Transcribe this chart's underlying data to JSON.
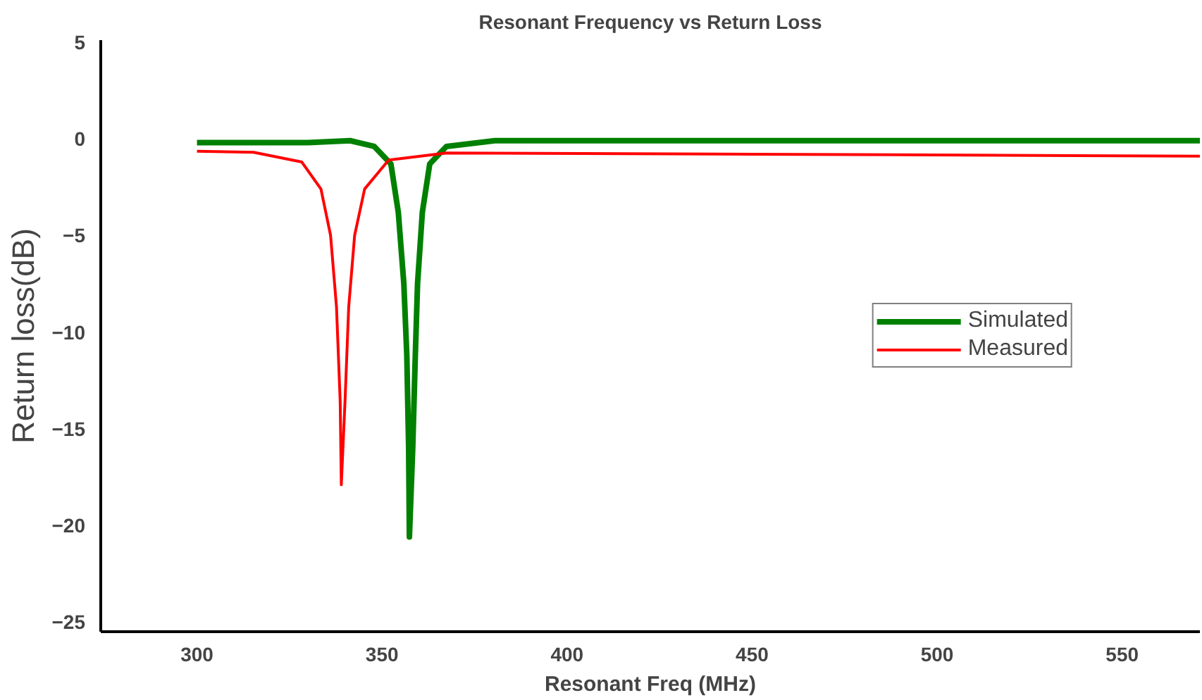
{
  "chart_data": {
    "type": "line",
    "title": "Resonant Frequency vs Return Loss",
    "xlabel": "Resonant Freq (MHz)",
    "ylabel": "Return loss(dB)",
    "xlim": [
      274,
      571
    ],
    "ylim": [
      -25.5,
      5.1
    ],
    "xticks": [
      300,
      350,
      400,
      450,
      500,
      550
    ],
    "yticks": [
      5,
      0,
      -5,
      -10,
      -15,
      -20,
      -25
    ],
    "grid": false,
    "legend": "right",
    "line_style": "solid",
    "marker": "none",
    "series": [
      {
        "name": "Simulated",
        "color": "#008000",
        "x": [
          300,
          330,
          341.4,
          347.9,
          352.4,
          354.4,
          355.9,
          356.7,
          357.2,
          357.4,
          358.3,
          359,
          359.6,
          360.9,
          362.9,
          367.4,
          380.5,
          400,
          571
        ],
        "values": [
          -0.2,
          -0.2,
          -0.1,
          -0.4,
          -1.3,
          -3.8,
          -7.5,
          -11.2,
          -16,
          -20.6,
          -16,
          -11.2,
          -7.5,
          -3.8,
          -1.3,
          -0.4,
          -0.1,
          -0.1,
          -0.1
        ]
      },
      {
        "name": "Measured",
        "color": "#ff0000",
        "x": [
          300,
          315.3,
          328.3,
          333.5,
          336.1,
          337.7,
          338.7,
          339,
          340,
          341,
          342.6,
          345.3,
          351.8,
          367.4,
          450,
          571
        ],
        "values": [
          -0.65,
          -0.7,
          -1.2,
          -2.6,
          -5,
          -8.7,
          -13.6,
          -17.9,
          -13.6,
          -8.7,
          -5,
          -2.6,
          -1.1,
          -0.74,
          -0.8,
          -0.9
        ]
      }
    ]
  }
}
